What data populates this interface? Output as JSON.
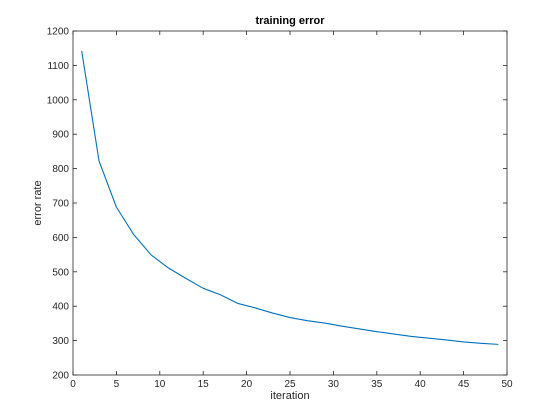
{
  "chart_data": {
    "type": "line",
    "title": "training error",
    "xlabel": "iteration",
    "ylabel": "error rate",
    "xlim": [
      0,
      50
    ],
    "ylim": [
      200,
      1200
    ],
    "xticks": [
      0,
      5,
      10,
      15,
      20,
      25,
      30,
      35,
      40,
      45,
      50
    ],
    "yticks": [
      200,
      300,
      400,
      500,
      600,
      700,
      800,
      900,
      1000,
      1100,
      1200
    ],
    "grid": false,
    "legend": "none",
    "line_color": "#0072bd",
    "series": [
      {
        "x": [
          1,
          3,
          5,
          7,
          9,
          11,
          13,
          15,
          17,
          19,
          21,
          23,
          25,
          27,
          29,
          31,
          33,
          35,
          37,
          39,
          41,
          43,
          45,
          47,
          49
        ],
        "values": [
          1142,
          822,
          688,
          608,
          549,
          511,
          481,
          452,
          433,
          408,
          395,
          380,
          367,
          358,
          351,
          342,
          334,
          326,
          319,
          312,
          307,
          302,
          296,
          292,
          289
        ]
      }
    ]
  }
}
